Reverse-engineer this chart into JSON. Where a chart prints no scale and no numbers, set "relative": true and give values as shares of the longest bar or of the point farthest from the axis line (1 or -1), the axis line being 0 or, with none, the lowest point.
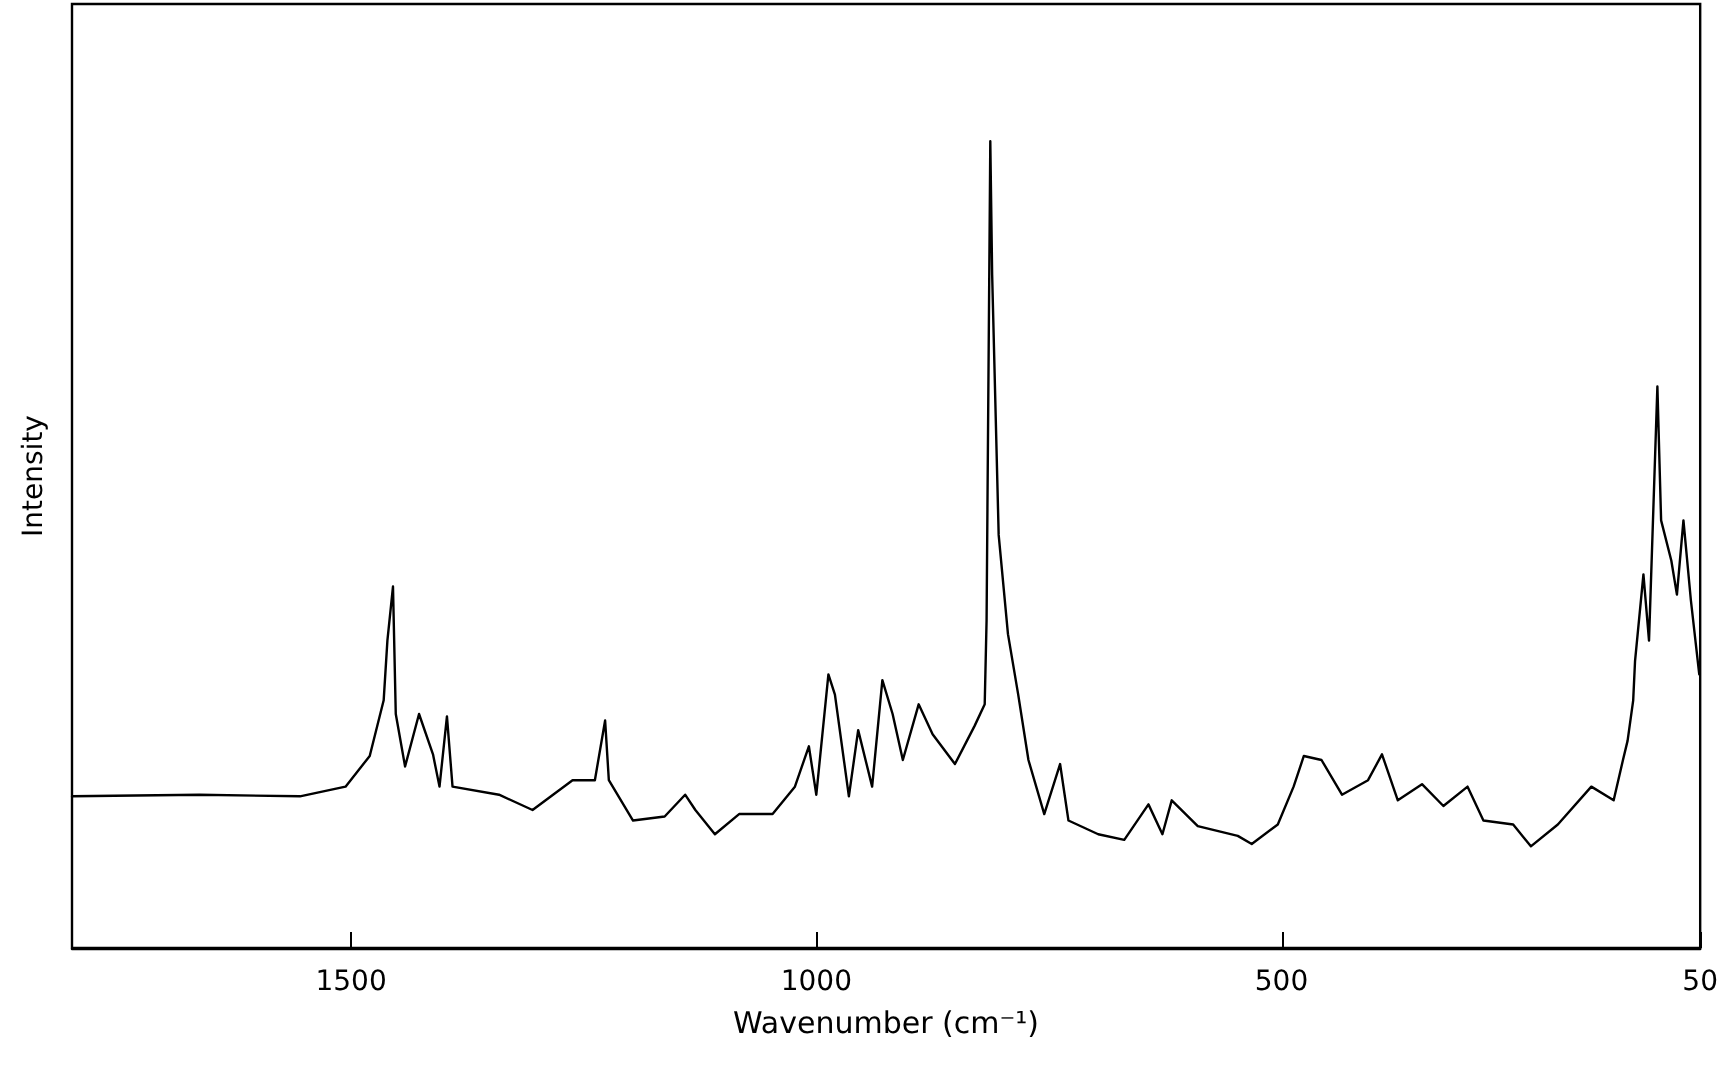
{
  "chart_data": {
    "type": "line",
    "relative": true,
    "xlabel": "Wavenumber (cm⁻¹)",
    "ylabel": "Intensity",
    "xlim": [
      1800,
      50
    ],
    "xticks": [
      1500,
      1000,
      500,
      50
    ],
    "grid": false,
    "marker": "none",
    "line_style": "solid",
    "series": [
      {
        "color": "#000000",
        "x": [
          1800,
          1663,
          1555,
          1506,
          1480,
          1465,
          1461,
          1455,
          1452,
          1442,
          1427,
          1412,
          1405,
          1397,
          1391,
          1341,
          1305,
          1262,
          1238,
          1227,
          1223,
          1197,
          1163,
          1141,
          1130,
          1109,
          1083,
          1047,
          1023,
          1008,
          1000,
          987,
          980,
          965,
          955,
          940,
          929,
          918,
          907,
          890,
          875,
          851,
          830,
          819,
          817,
          813,
          811,
          804,
          794,
          783,
          772,
          755,
          738,
          729,
          697,
          669,
          643,
          628,
          618,
          590,
          547,
          532,
          504,
          487,
          476,
          457,
          435,
          407,
          392,
          375,
          349,
          326,
          300,
          283,
          251,
          232,
          203,
          167,
          143,
          133,
          128,
          122,
          120,
          111,
          105,
          96,
          92,
          81,
          75,
          68,
          60,
          51
        ],
        "values": [
          0.188,
          0.19,
          0.188,
          0.2,
          0.238,
          0.307,
          0.381,
          0.448,
          0.29,
          0.225,
          0.29,
          0.24,
          0.2,
          0.287,
          0.2,
          0.19,
          0.171,
          0.208,
          0.208,
          0.282,
          0.208,
          0.158,
          0.163,
          0.19,
          0.171,
          0.141,
          0.166,
          0.166,
          0.2,
          0.25,
          0.19,
          0.339,
          0.314,
          0.188,
          0.27,
          0.2,
          0.332,
          0.29,
          0.233,
          0.302,
          0.265,
          0.228,
          0.275,
          0.302,
          0.406,
          1.0,
          0.834,
          0.512,
          0.389,
          0.314,
          0.233,
          0.166,
          0.228,
          0.158,
          0.141,
          0.134,
          0.178,
          0.141,
          0.183,
          0.151,
          0.139,
          0.129,
          0.153,
          0.2,
          0.238,
          0.233,
          0.19,
          0.208,
          0.24,
          0.183,
          0.203,
          0.176,
          0.2,
          0.158,
          0.153,
          0.126,
          0.153,
          0.2,
          0.183,
          0.233,
          0.257,
          0.307,
          0.356,
          0.463,
          0.381,
          0.696,
          0.53,
          0.48,
          0.438,
          0.53,
          0.431,
          0.339
        ]
      }
    ]
  }
}
